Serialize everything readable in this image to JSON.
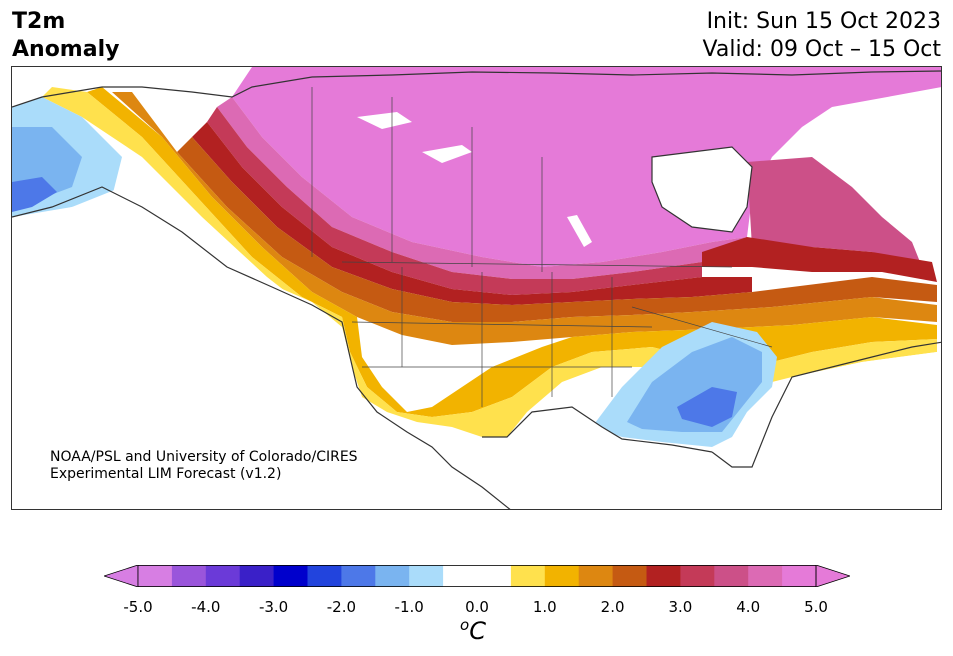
{
  "header": {
    "title_line1": "T2m",
    "title_line2": "Anomaly",
    "init_label": "Init: Sun 15 Oct 2023",
    "valid_label": "Valid: 09 Oct – 15 Oct"
  },
  "map": {
    "region": "North America",
    "credit_line1": "NOAA/PSL and University of Colorado/CIRES",
    "credit_line2": "Experimental LIM Forecast (v1.2)"
  },
  "colorbar": {
    "unit_base": "C",
    "unit_sup": "o",
    "ticks": [
      "-5.0",
      "-4.0",
      "-3.0",
      "-2.0",
      "-1.0",
      "0.0",
      "1.0",
      "2.0",
      "3.0",
      "4.0",
      "5.0"
    ],
    "colors": [
      "#d77ee3",
      "#9a55db",
      "#6b3ad8",
      "#3a20c8",
      "#0000cc",
      "#2244dd",
      "#4d78e8",
      "#7ab4f0",
      "#aadcfa",
      "#ffffff",
      "#ffffff",
      "#ffe14d",
      "#f2b300",
      "#dd8711",
      "#c55a12",
      "#b22121",
      "#c43a58",
      "#cc5088",
      "#dc6ab4",
      "#e57ad8"
    ],
    "under_color": "#d77ee3",
    "over_color": "#e57ad8"
  }
}
